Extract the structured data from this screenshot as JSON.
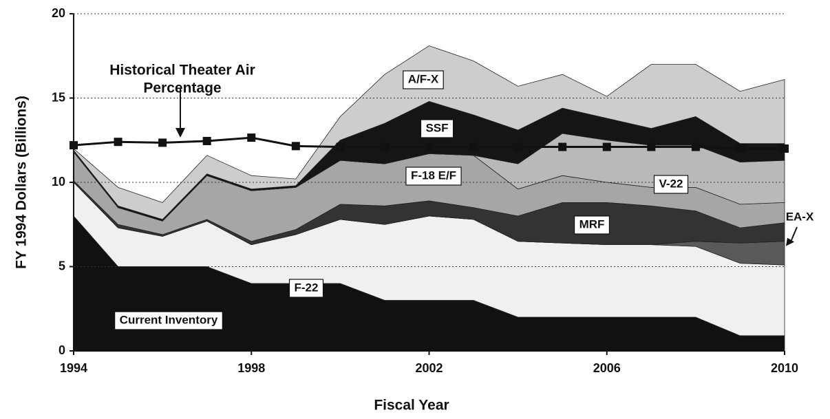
{
  "chart_data": {
    "type": "stacked_area",
    "xlabel": "Fiscal Year",
    "ylabel": "FY 1994 Dollars (Billions)",
    "x": [
      1994,
      1995,
      1996,
      1997,
      1998,
      1999,
      2000,
      2001,
      2002,
      2003,
      2004,
      2005,
      2006,
      2007,
      2008,
      2009,
      2010
    ],
    "xlim": [
      1994,
      2010
    ],
    "xticks": [
      1994,
      1998,
      2002,
      2006,
      2010
    ],
    "ylim": [
      0,
      20
    ],
    "yticks": [
      0,
      5,
      10,
      15,
      20
    ],
    "grid": true,
    "series": [
      {
        "name": "Current Inventory",
        "color": "#111111",
        "values": [
          8,
          5,
          5,
          5,
          4,
          4,
          4,
          3,
          3,
          3,
          2,
          2,
          2,
          2,
          2,
          0.9,
          0.9
        ]
      },
      {
        "name": "F-22",
        "color": "#f0f0f0",
        "values": [
          2,
          2.3,
          1.8,
          2.7,
          2.3,
          2.9,
          3.8,
          4.5,
          5,
          4.8,
          4.5,
          4.4,
          4.3,
          4.3,
          4.2,
          4.3,
          4.2
        ]
      },
      {
        "name": "EA-X",
        "color": "#5a5a5a",
        "values": [
          0,
          0,
          0,
          0,
          0,
          0,
          0,
          0,
          0,
          0,
          0,
          0,
          0,
          0,
          0.3,
          1.2,
          1.4
        ]
      },
      {
        "name": "MRF",
        "color": "#333333",
        "values": [
          0.1,
          0.2,
          0.1,
          0.1,
          0.2,
          0.3,
          0.9,
          1.1,
          0.9,
          0.7,
          1.5,
          2.4,
          2.5,
          2.3,
          1.8,
          0.9,
          1.1
        ]
      },
      {
        "name": "F-18 E/F",
        "color": "#a6a6a6",
        "values": [
          1.7,
          1.0,
          0.8,
          2.6,
          3.0,
          2.5,
          2.6,
          2.5,
          2.8,
          3.1,
          1.6,
          1.6,
          1.2,
          1.1,
          1.4,
          1.4,
          1.2
        ]
      },
      {
        "name": "V-22",
        "color": "#b9b9b9",
        "values": [
          0,
          0,
          0,
          0,
          0,
          0,
          0,
          0,
          0,
          0,
          1.5,
          2.5,
          2.5,
          2.5,
          2.5,
          2.5,
          2.5
        ]
      },
      {
        "name": "SSF",
        "color": "#151515",
        "values": [
          0.1,
          0.1,
          0.1,
          0.1,
          0.1,
          0.1,
          1.2,
          2.4,
          3.1,
          2.4,
          2.0,
          1.5,
          1.3,
          1.0,
          1.7,
          1.1,
          1.0
        ]
      },
      {
        "name": "A/F-X",
        "color": "#cdcdcd",
        "values": [
          0.1,
          1.1,
          1.0,
          1.1,
          0.8,
          0.4,
          1.4,
          2.9,
          3.3,
          3.2,
          2.6,
          2.0,
          1.3,
          3.8,
          3.1,
          3.1,
          3.8
        ]
      }
    ],
    "line": {
      "label_lines": [
        "Historical Theater Air",
        "Percentage"
      ],
      "color": "#111111",
      "values": [
        12.2,
        12.4,
        12.35,
        12.45,
        12.65,
        12.15,
        12.1,
        12.1,
        12.1,
        12.1,
        12.1,
        12.1,
        12.1,
        12.1,
        12.1,
        12.0,
        12.0
      ]
    }
  }
}
